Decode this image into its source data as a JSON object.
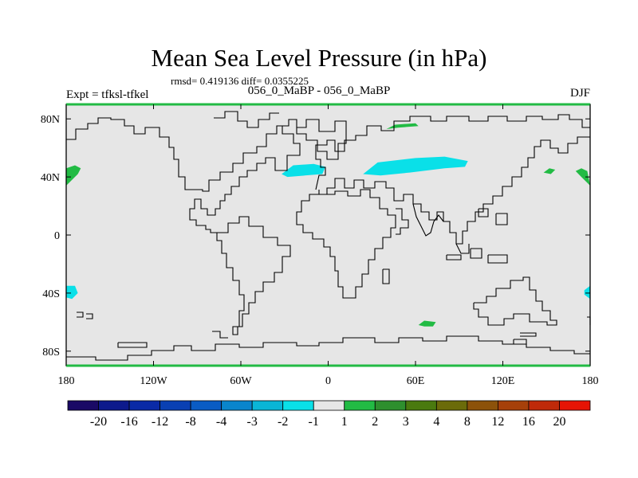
{
  "chart_data": {
    "type": "heatmap",
    "title": "Mean Sea Level Pressure (in hPa)",
    "stats_label": "rmsd= 0.419136 diff= 0.0355225",
    "subtitle": "056_0_MaBP - 056_0_MaBP",
    "left_label": "Expt = tfksl-tfkel",
    "right_label": "DJF",
    "x_range": [
      -180,
      180
    ],
    "y_range": [
      -90,
      90
    ],
    "x_ticks": [
      {
        "value": -180,
        "label": "180"
      },
      {
        "value": -120,
        "label": "120W"
      },
      {
        "value": -60,
        "label": "60W"
      },
      {
        "value": 0,
        "label": "0"
      },
      {
        "value": 60,
        "label": "60E"
      },
      {
        "value": 120,
        "label": "120E"
      },
      {
        "value": 180,
        "label": "180"
      }
    ],
    "y_ticks": [
      {
        "value": 80,
        "label": "80N"
      },
      {
        "value": 40,
        "label": "40N"
      },
      {
        "value": 0,
        "label": "0"
      },
      {
        "value": -40,
        "label": "40S"
      },
      {
        "value": -80,
        "label": "80S"
      }
    ],
    "colorbar": {
      "labels": [
        "-20",
        "-16",
        "-12",
        "-8",
        "-4",
        "-3",
        "-2",
        "-1",
        "1",
        "2",
        "3",
        "4",
        "8",
        "12",
        "16",
        "20"
      ],
      "colors": [
        "#1a0a66",
        "#0d1a8c",
        "#0a2aa6",
        "#0a40b3",
        "#0a5cc4",
        "#0a85cc",
        "#0ab5d6",
        "#0ae0e8",
        "#e6e6e6",
        "#22bb44",
        "#2e8f2e",
        "#4a7a0f",
        "#6b6b0a",
        "#8c520a",
        "#a6400a",
        "#bf2a0a",
        "#e61405"
      ]
    },
    "background_color": "#e6e6e6",
    "anomaly_regions": [
      {
        "category": "1 to 2",
        "color": "#22bb44",
        "points": [
          [
            -180,
            34
          ],
          [
            -176,
            38
          ],
          [
            -172,
            42
          ],
          [
            -170,
            46
          ],
          [
            -174,
            48
          ],
          [
            -180,
            46
          ]
        ]
      },
      {
        "category": "1 to 2",
        "color": "#22bb44",
        "points": [
          [
            180,
            34
          ],
          [
            178,
            44
          ],
          [
            174,
            46
          ],
          [
            170,
            44
          ],
          [
            174,
            40
          ]
        ]
      },
      {
        "category": "1 to 2",
        "color": "#22bb44",
        "points": [
          [
            148,
            43
          ],
          [
            152,
            46
          ],
          [
            156,
            45
          ],
          [
            153,
            42
          ]
        ]
      },
      {
        "category": "1 to 2",
        "color": "#22bb44",
        "points": [
          [
            40,
            73
          ],
          [
            46,
            76
          ],
          [
            60,
            77
          ],
          [
            62,
            75
          ],
          [
            48,
            74
          ]
        ]
      },
      {
        "category": "1 to 2",
        "color": "#22bb44",
        "points": [
          [
            62,
            -62
          ],
          [
            66,
            -59
          ],
          [
            74,
            -60
          ],
          [
            72,
            -63
          ],
          [
            66,
            -63
          ]
        ]
      },
      {
        "category": "-2 to -1",
        "color": "#0ae0e8",
        "points": [
          [
            -32,
            42
          ],
          [
            -24,
            48
          ],
          [
            -10,
            49
          ],
          [
            -2,
            47
          ],
          [
            -4,
            42
          ],
          [
            -16,
            41
          ],
          [
            -28,
            40
          ]
        ]
      },
      {
        "category": "-2 to -1",
        "color": "#0ae0e8",
        "points": [
          [
            24,
            42
          ],
          [
            34,
            50
          ],
          [
            60,
            53
          ],
          [
            80,
            54
          ],
          [
            96,
            51
          ],
          [
            94,
            47
          ],
          [
            80,
            46
          ],
          [
            56,
            43
          ],
          [
            36,
            41
          ]
        ]
      },
      {
        "category": "-2 to -1",
        "color": "#0ae0e8",
        "points": [
          [
            -180,
            -35
          ],
          [
            -174,
            -35
          ],
          [
            -172,
            -40
          ],
          [
            -176,
            -44
          ],
          [
            -180,
            -43
          ]
        ]
      },
      {
        "category": "-2 to -1",
        "color": "#0ae0e8",
        "points": [
          [
            180,
            -35
          ],
          [
            176,
            -38
          ],
          [
            176,
            -41
          ],
          [
            180,
            -44
          ]
        ]
      }
    ]
  }
}
